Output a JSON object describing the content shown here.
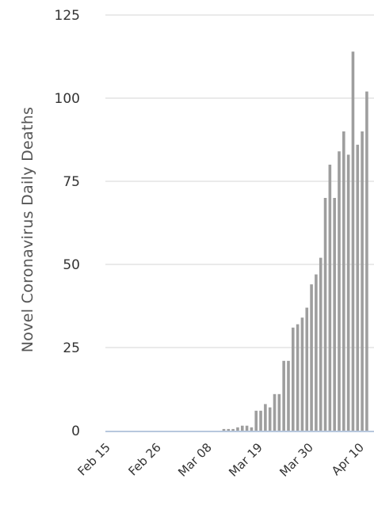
{
  "chart_data": {
    "type": "bar",
    "title": "",
    "xlabel": "",
    "ylabel": "Novel Coronavirus Daily Deaths",
    "ylim": [
      0,
      125
    ],
    "yticks": [
      0,
      25,
      50,
      75,
      100,
      125
    ],
    "grid": true,
    "xticks": [
      "Feb 15",
      "Feb 26",
      "Mar 08",
      "Mar 19",
      "Mar 30",
      "Apr 10"
    ],
    "bar_color": "#9e9e9e",
    "grid_color": "#e3e3e3",
    "baseline_color": "#b7c7dd",
    "categories": [
      "Feb 15",
      "Feb 16",
      "Feb 17",
      "Feb 18",
      "Feb 19",
      "Feb 20",
      "Feb 21",
      "Feb 22",
      "Feb 23",
      "Feb 24",
      "Feb 25",
      "Feb 26",
      "Feb 27",
      "Feb 28",
      "Feb 29",
      "Mar 01",
      "Mar 02",
      "Mar 03",
      "Mar 04",
      "Mar 05",
      "Mar 06",
      "Mar 07",
      "Mar 08",
      "Mar 09",
      "Mar 10",
      "Mar 11",
      "Mar 12",
      "Mar 13",
      "Mar 14",
      "Mar 15",
      "Mar 16",
      "Mar 17",
      "Mar 18",
      "Mar 19",
      "Mar 20",
      "Mar 21",
      "Mar 22",
      "Mar 23",
      "Mar 24",
      "Mar 25",
      "Mar 26",
      "Mar 27",
      "Mar 28",
      "Mar 29",
      "Mar 30",
      "Mar 31",
      "Apr 01",
      "Apr 02",
      "Apr 03",
      "Apr 04",
      "Apr 05",
      "Apr 06",
      "Apr 07",
      "Apr 08",
      "Apr 09",
      "Apr 10",
      "Apr 11"
    ],
    "values": [
      0,
      0,
      0,
      0,
      0,
      0,
      0,
      0,
      0,
      0,
      0,
      0,
      0,
      0,
      0,
      0,
      0,
      0,
      0,
      0,
      0,
      0,
      0,
      0,
      0,
      0.5,
      0.5,
      0.5,
      1,
      1.5,
      1.5,
      1,
      6,
      6,
      8,
      7,
      11,
      11,
      21,
      21,
      31,
      32,
      34,
      37,
      44,
      47,
      52,
      70,
      80,
      70,
      84,
      90,
      83,
      114,
      86,
      90,
      102
    ]
  }
}
